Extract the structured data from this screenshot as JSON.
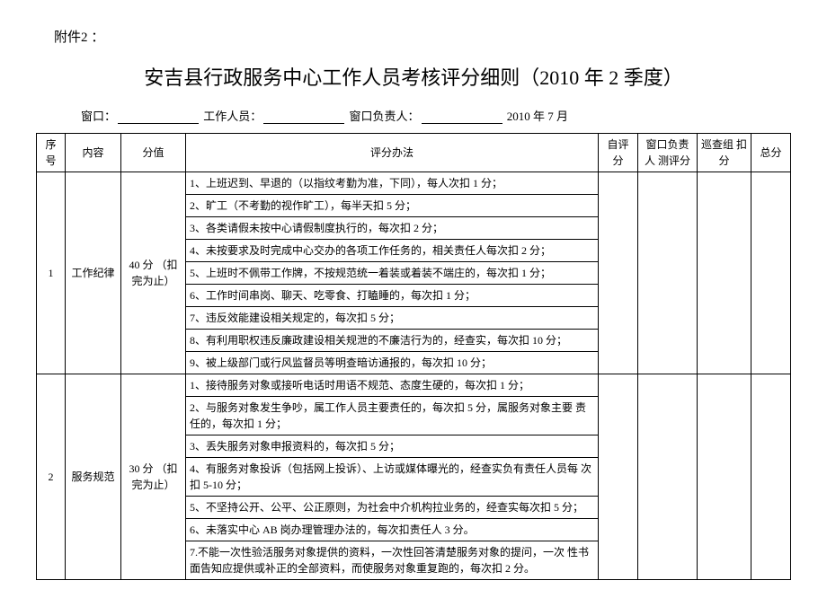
{
  "attachment_label": "附件2 ：",
  "title": "安吉县行政服务中心工作人员考核评分细则（2010 年 2 季度）",
  "form_line": {
    "window_label": "窗口：",
    "staff_label": "工作人员：",
    "supervisor_label": "窗口负责人：",
    "date": "2010 年 7 月"
  },
  "headers": {
    "seq": "序号",
    "content": "内容",
    "score": "分值",
    "method": "评分办法",
    "self": "自评分",
    "lead": "窗口负责人 测评分",
    "inspect": "巡查组 扣分",
    "total": "总分"
  },
  "sections": [
    {
      "seq": "1",
      "content": "工作纪律",
      "score": "40 分 （扣完为止）",
      "criteria": [
        "1、上班迟到、早退的（以指纹考勤为准，下同），每人次扣 1 分；",
        "2、旷工（不考勤的视作旷工），每半天扣 5 分；",
        "3、各类请假未按中心请假制度执行的，每次扣 2 分；",
        "4、未按要求及时完成中心交办的各项工作任务的，相关责任人每次扣 2 分；",
        "5、上班时不佩带工作牌，不按规范统一着装或着装不端庄的，每次扣 1 分；",
        "6、工作时间串岗、聊天、吃零食、打瞌睡的，每次扣 1 分；",
        "7、违反效能建设相关规定的，每次扣 5 分；",
        "8、有利用职权违反廉政建设相关规泄的不廉洁行为的，经查实，每次扣 10 分；",
        "9、被上级部门或行风监督员等明查暗访通报的，每次扣 10 分；"
      ]
    },
    {
      "seq": "2",
      "content": "服务规范",
      "score": "30 分 （扣完为止）",
      "criteria": [
        "1、接待服务对象或接听电话时用语不规范、态度生硬的，每次扣 1 分；",
        "2、与服务对象发生争吵，属工作人员主要责任的，每次扣 5 分，属服务对象主要 责任的，每次扣 1 分；",
        "3、丢失服务对象申报资料的，每次扣 5 分；",
        "4、有服务对象投诉（包括网上投诉）、上访或媒体曝光的，经查实负有责任人员每 次扣 5-10 分；",
        "5、不坚持公开、公平、公正原则，为社会中介机构拉业务的，经查实每次扣 5 分；",
        "6、未落实中心 AB 岗办理管理办法的，每次扣责任人 3 分。",
        "7.不能一次性验活服务对象提供的资料，一次性回答清楚服务对象的提问，一次 性书面告知应提供或补正的全部资料，而使服务对象重复跑的，每次扣 2 分。"
      ]
    }
  ]
}
